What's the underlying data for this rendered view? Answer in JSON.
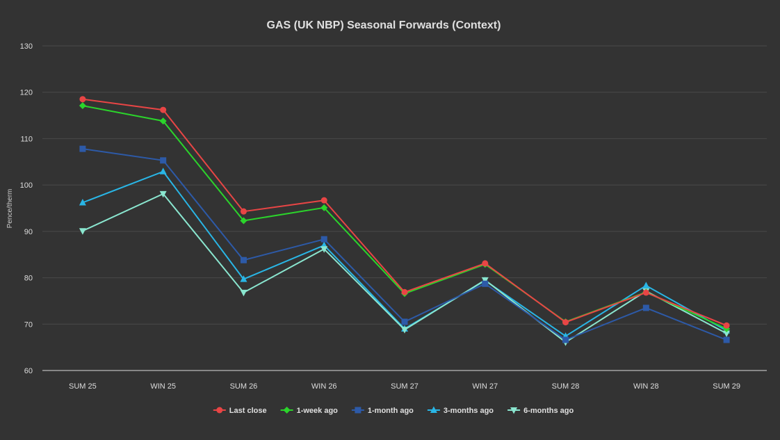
{
  "chart_data": {
    "type": "line",
    "title": "GAS (UK NBP) Seasonal Forwards (Context)",
    "xlabel": "",
    "ylabel": "Pence/therm",
    "ylim": [
      60,
      130
    ],
    "yticks": [
      60,
      70,
      80,
      90,
      100,
      110,
      120,
      130
    ],
    "grid": true,
    "legend_position": "bottom-center",
    "categories": [
      "SUM 25",
      "WIN 25",
      "SUM 26",
      "WIN 26",
      "SUM 27",
      "WIN 27",
      "SUM 28",
      "WIN 28",
      "SUM 29"
    ],
    "series": [
      {
        "name": "Last close",
        "color": "#e84545",
        "marker": "circle",
        "values": [
          118.5,
          116.2,
          94.3,
          96.7,
          76.9,
          83.1,
          70.4,
          76.8,
          69.7
        ]
      },
      {
        "name": "1-week ago",
        "color": "#2bd42b",
        "marker": "diamond",
        "values": [
          117.1,
          113.8,
          92.3,
          95.1,
          76.6,
          82.9,
          70.5,
          76.9,
          69.0
        ]
      },
      {
        "name": "1-month ago",
        "color": "#2d5aa8",
        "marker": "square",
        "values": [
          107.8,
          105.3,
          83.8,
          88.3,
          70.5,
          78.7,
          66.6,
          73.5,
          66.6
        ]
      },
      {
        "name": "3-months ago",
        "color": "#29b6e6",
        "marker": "triangle",
        "values": [
          96.2,
          102.9,
          79.7,
          87.0,
          69.0,
          79.4,
          67.4,
          78.3,
          68.6
        ]
      },
      {
        "name": "6-months ago",
        "color": "#8ae6cf",
        "marker": "triangle-down",
        "values": [
          90.1,
          98.1,
          76.8,
          86.2,
          68.8,
          79.5,
          66.1,
          77.1,
          68.0
        ]
      }
    ]
  }
}
